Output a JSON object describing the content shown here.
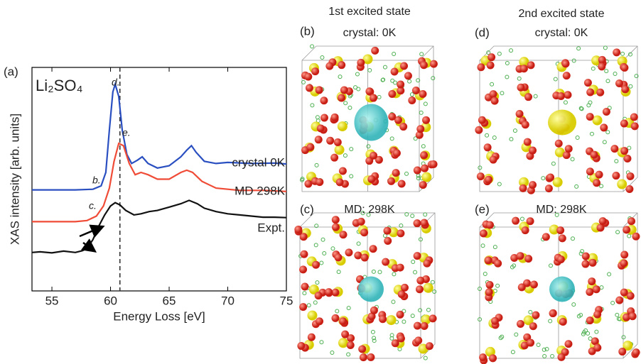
{
  "chart_data": {
    "type": "line",
    "panel_label": "(a)",
    "compound": "Li₂SO₄",
    "xlabel": "Energy Loss [eV]",
    "ylabel": "XAS intensity [arb. units]",
    "xlim": [
      53.3,
      75
    ],
    "xticks": [
      55,
      60,
      65,
      70,
      75
    ],
    "ylim": [
      0,
      10
    ],
    "vline": 60.8,
    "series": [
      {
        "name": "crystal 0K",
        "color": "#2a4fc0",
        "x": [
          53.3,
          57,
          58.5,
          59.2,
          59.6,
          59.9,
          60.2,
          60.4,
          60.7,
          61,
          61.4,
          61.8,
          62.3,
          62.7,
          63.2,
          64,
          65,
          66,
          66.5,
          66.9,
          67.3,
          68,
          69,
          70,
          72,
          74,
          75
        ],
        "values": [
          4.52,
          4.52,
          4.55,
          4.7,
          5.3,
          7.2,
          8.9,
          9.25,
          8.7,
          7.2,
          6.1,
          5.7,
          5.85,
          6.0,
          5.7,
          5.5,
          5.6,
          6.0,
          6.3,
          6.5,
          6.2,
          5.8,
          5.7,
          5.75,
          5.7,
          5.72,
          5.68
        ]
      },
      {
        "name": "MD 298K",
        "color": "#ef4b36",
        "x": [
          53.3,
          57,
          58,
          58.8,
          59.4,
          59.9,
          60.3,
          60.7,
          61.1,
          61.6,
          62.1,
          62.6,
          63.2,
          64,
          65,
          66,
          66.5,
          67,
          67.8,
          69,
          71,
          73,
          75
        ],
        "values": [
          3.1,
          3.1,
          3.15,
          3.35,
          3.8,
          4.6,
          5.8,
          6.6,
          6.5,
          5.7,
          5.2,
          5.3,
          5.2,
          5.0,
          5.0,
          5.3,
          5.4,
          5.3,
          4.9,
          4.6,
          4.5,
          4.5,
          4.45
        ]
      },
      {
        "name": "Expt.",
        "color": "#111111",
        "x": [
          53.3,
          54,
          55,
          56,
          57,
          57.6,
          58,
          58.5,
          59,
          59.5,
          60,
          60.4,
          60.8,
          61.3,
          62,
          62.6,
          63.3,
          64,
          65,
          66,
          66.7,
          67.4,
          68,
          69,
          70,
          71,
          72,
          73,
          74,
          75
        ],
        "values": [
          1.72,
          1.75,
          1.7,
          1.78,
          1.72,
          1.8,
          1.9,
          2.3,
          2.9,
          3.4,
          3.8,
          3.95,
          3.85,
          3.6,
          3.4,
          3.45,
          3.55,
          3.6,
          3.75,
          3.9,
          4.05,
          3.9,
          3.7,
          3.55,
          3.45,
          3.4,
          3.35,
          3.3,
          3.3,
          3.28
        ]
      }
    ],
    "annotations": [
      "d.",
      "e.",
      "b.",
      "c."
    ]
  },
  "panels": [
    {
      "letter": "(b)",
      "title": "1st excited state",
      "subtitle": "crystal: 0K"
    },
    {
      "letter": "(d)",
      "title": "2nd excited state",
      "subtitle": "crystal: 0K"
    },
    {
      "letter": "(c)",
      "title": "MD: 298K"
    },
    {
      "letter": "(e)",
      "title": "MD: 298K"
    }
  ]
}
